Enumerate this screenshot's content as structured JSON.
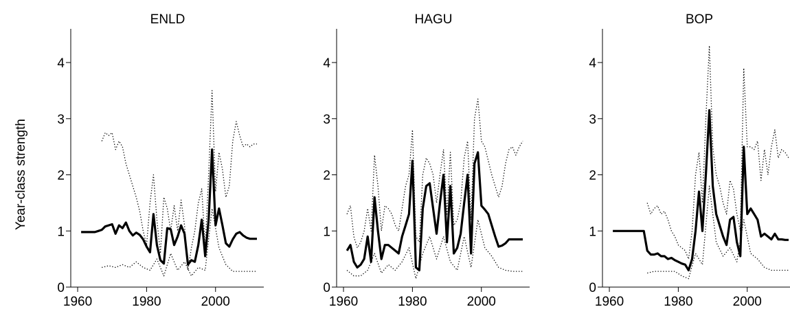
{
  "figure": {
    "ylabel": "Year-class strength"
  },
  "style": {
    "line_color": "#000000",
    "background": "#ffffff",
    "axis_color": "#000000"
  },
  "chart_data": [
    {
      "type": "line",
      "title": "ENLD",
      "ylabel": "Year-class strength",
      "xlim": [
        1958,
        2014
      ],
      "ylim": [
        0,
        4.6
      ],
      "xticks": [
        1960,
        1980,
        2000
      ],
      "yticks": [
        0,
        1,
        2,
        3,
        4
      ],
      "grid": false,
      "series": [
        {
          "line_style": "solid",
          "x": [
            1961,
            1962,
            1963,
            1964,
            1965,
            1966,
            1967,
            1968,
            1969,
            1970,
            1971,
            1972,
            1973,
            1974,
            1975,
            1976,
            1977,
            1978,
            1979,
            1980,
            1981,
            1982,
            1983,
            1984,
            1985,
            1986,
            1987,
            1988,
            1989,
            1990,
            1991,
            1992,
            1993,
            1994,
            1995,
            1996,
            1997,
            1998,
            1999,
            2000,
            2001,
            2002,
            2003,
            2004,
            2005,
            2006,
            2007,
            2008,
            2009,
            2010,
            2011,
            2012
          ],
          "y": [
            0.98,
            0.98,
            0.98,
            0.98,
            0.98,
            1.0,
            1.02,
            1.08,
            1.1,
            1.12,
            0.95,
            1.1,
            1.05,
            1.15,
            1.0,
            0.92,
            0.97,
            0.93,
            0.85,
            0.72,
            0.62,
            1.3,
            0.75,
            0.48,
            0.42,
            1.05,
            1.03,
            0.75,
            0.9,
            1.1,
            0.95,
            0.4,
            0.48,
            0.45,
            0.75,
            1.2,
            0.55,
            1.2,
            2.45,
            1.1,
            1.4,
            1.1,
            0.78,
            0.72,
            0.85,
            0.95,
            0.98,
            0.92,
            0.88,
            0.86,
            0.86,
            0.86
          ]
        },
        {
          "line_style": "dotted",
          "x": [
            1967,
            1968,
            1969,
            1970,
            1971,
            1972,
            1973,
            1974,
            1975,
            1976,
            1977,
            1978,
            1979,
            1980,
            1981,
            1982,
            1983,
            1984,
            1985,
            1986,
            1987,
            1988,
            1989,
            1990,
            1991,
            1992,
            1993,
            1994,
            1995,
            1996,
            1997,
            1998,
            1999,
            2000,
            2001,
            2002,
            2003,
            2004,
            2005,
            2006,
            2007,
            2008,
            2009,
            2010,
            2011,
            2012
          ],
          "y": [
            2.6,
            2.75,
            2.7,
            2.75,
            2.45,
            2.6,
            2.5,
            2.2,
            2.0,
            1.8,
            1.6,
            1.35,
            1.0,
            0.75,
            1.5,
            2.0,
            1.2,
            0.6,
            1.6,
            1.4,
            1.0,
            1.45,
            1.0,
            1.55,
            1.1,
            0.3,
            0.7,
            1.0,
            1.5,
            1.75,
            0.7,
            2.0,
            3.5,
            1.7,
            2.4,
            2.1,
            1.6,
            1.8,
            2.6,
            2.95,
            2.7,
            2.5,
            2.55,
            2.5,
            2.55,
            2.55
          ]
        },
        {
          "line_style": "dotted",
          "x": [
            1967,
            1969,
            1971,
            1973,
            1975,
            1977,
            1979,
            1981,
            1983,
            1985,
            1987,
            1989,
            1991,
            1993,
            1995,
            1997,
            1999,
            2001,
            2003,
            2005,
            2007,
            2009,
            2011,
            2012
          ],
          "y": [
            0.35,
            0.38,
            0.35,
            0.4,
            0.35,
            0.45,
            0.35,
            0.3,
            0.5,
            0.2,
            0.6,
            0.3,
            0.45,
            0.2,
            0.35,
            0.3,
            1.4,
            0.7,
            0.4,
            0.28,
            0.28,
            0.28,
            0.28,
            0.28
          ]
        }
      ]
    },
    {
      "type": "line",
      "title": "HAGU",
      "xlim": [
        1958,
        2014
      ],
      "ylim": [
        0,
        4.6
      ],
      "xticks": [
        1960,
        1980,
        2000
      ],
      "yticks": [
        0,
        1,
        2,
        3,
        4
      ],
      "grid": false,
      "series": [
        {
          "line_style": "solid",
          "x": [
            1961,
            1962,
            1963,
            1964,
            1965,
            1966,
            1967,
            1968,
            1969,
            1970,
            1971,
            1972,
            1973,
            1974,
            1975,
            1976,
            1977,
            1978,
            1979,
            1980,
            1981,
            1982,
            1983,
            1984,
            1985,
            1986,
            1987,
            1988,
            1989,
            1990,
            1991,
            1992,
            1993,
            1994,
            1995,
            1996,
            1997,
            1998,
            1999,
            2000,
            2001,
            2002,
            2003,
            2004,
            2005,
            2006,
            2007,
            2008,
            2009,
            2010,
            2011,
            2012
          ],
          "y": [
            0.65,
            0.75,
            0.45,
            0.35,
            0.4,
            0.5,
            0.9,
            0.45,
            1.6,
            1.0,
            0.5,
            0.75,
            0.75,
            0.7,
            0.65,
            0.6,
            0.9,
            1.1,
            1.3,
            2.25,
            0.35,
            0.3,
            1.4,
            1.8,
            1.85,
            1.4,
            0.95,
            1.5,
            2.0,
            0.8,
            1.8,
            0.6,
            0.7,
            0.95,
            1.5,
            2.0,
            0.6,
            2.2,
            2.4,
            1.45,
            1.38,
            1.3,
            1.1,
            0.9,
            0.72,
            0.74,
            0.78,
            0.85,
            0.85,
            0.85,
            0.85,
            0.85
          ]
        },
        {
          "line_style": "dotted",
          "x": [
            1961,
            1962,
            1963,
            1964,
            1965,
            1966,
            1967,
            1968,
            1969,
            1970,
            1971,
            1972,
            1973,
            1974,
            1975,
            1976,
            1977,
            1978,
            1979,
            1980,
            1981,
            1982,
            1983,
            1984,
            1985,
            1986,
            1987,
            1988,
            1989,
            1990,
            1991,
            1992,
            1993,
            1994,
            1995,
            1996,
            1997,
            1998,
            1999,
            2000,
            2001,
            2002,
            2003,
            2004,
            2005,
            2006,
            2007,
            2008,
            2009,
            2010,
            2011,
            2012
          ],
          "y": [
            1.3,
            1.45,
            0.9,
            0.7,
            0.8,
            1.0,
            1.4,
            1.0,
            2.35,
            1.8,
            1.0,
            1.45,
            1.4,
            1.3,
            1.1,
            1.0,
            1.4,
            1.8,
            2.0,
            2.8,
            0.9,
            0.8,
            2.0,
            2.3,
            2.2,
            2.0,
            1.5,
            2.0,
            2.45,
            1.3,
            2.4,
            1.1,
            1.2,
            1.5,
            2.3,
            2.6,
            1.2,
            3.0,
            3.35,
            2.6,
            2.5,
            2.25,
            2.0,
            1.8,
            1.6,
            1.8,
            2.2,
            2.45,
            2.5,
            2.35,
            2.5,
            2.6
          ]
        },
        {
          "line_style": "dotted",
          "x": [
            1961,
            1963,
            1965,
            1967,
            1969,
            1971,
            1973,
            1975,
            1977,
            1979,
            1981,
            1983,
            1985,
            1987,
            1989,
            1991,
            1993,
            1995,
            1997,
            1999,
            2001,
            2003,
            2005,
            2007,
            2009,
            2011,
            2012
          ],
          "y": [
            0.3,
            0.2,
            0.2,
            0.3,
            0.6,
            0.25,
            0.4,
            0.3,
            0.45,
            0.7,
            0.15,
            0.6,
            0.9,
            0.5,
            0.9,
            0.45,
            0.3,
            0.9,
            0.35,
            1.2,
            0.7,
            0.55,
            0.35,
            0.3,
            0.28,
            0.28,
            0.28
          ]
        }
      ]
    },
    {
      "type": "line",
      "title": "BOP",
      "xlim": [
        1958,
        2014
      ],
      "ylim": [
        0,
        4.6
      ],
      "xticks": [
        1960,
        1980,
        2000
      ],
      "yticks": [
        0,
        1,
        2,
        3,
        4
      ],
      "grid": false,
      "series": [
        {
          "line_style": "solid",
          "x": [
            1961,
            1962,
            1963,
            1964,
            1965,
            1966,
            1967,
            1968,
            1969,
            1970,
            1971,
            1972,
            1973,
            1974,
            1975,
            1976,
            1977,
            1978,
            1979,
            1980,
            1981,
            1982,
            1983,
            1984,
            1985,
            1986,
            1987,
            1988,
            1989,
            1990,
            1991,
            1992,
            1993,
            1994,
            1995,
            1996,
            1997,
            1998,
            1999,
            2000,
            2001,
            2002,
            2003,
            2004,
            2005,
            2006,
            2007,
            2008,
            2009,
            2010,
            2011,
            2012
          ],
          "y": [
            1.0,
            1.0,
            1.0,
            1.0,
            1.0,
            1.0,
            1.0,
            1.0,
            1.0,
            1.0,
            0.65,
            0.58,
            0.58,
            0.6,
            0.55,
            0.55,
            0.5,
            0.52,
            0.48,
            0.45,
            0.42,
            0.4,
            0.3,
            0.5,
            1.0,
            1.7,
            1.0,
            2.0,
            3.15,
            1.8,
            1.3,
            1.1,
            0.9,
            0.75,
            1.2,
            1.25,
            0.8,
            0.55,
            2.5,
            1.3,
            1.4,
            1.3,
            1.2,
            0.9,
            0.95,
            0.9,
            0.85,
            0.95,
            0.85,
            0.85,
            0.84,
            0.84
          ]
        },
        {
          "line_style": "dotted",
          "x": [
            1971,
            1972,
            1973,
            1974,
            1975,
            1976,
            1977,
            1978,
            1979,
            1980,
            1981,
            1982,
            1983,
            1984,
            1985,
            1986,
            1987,
            1988,
            1989,
            1990,
            1991,
            1992,
            1993,
            1994,
            1995,
            1996,
            1997,
            1998,
            1999,
            2000,
            2001,
            2002,
            2003,
            2004,
            2005,
            2006,
            2007,
            2008,
            2009,
            2010,
            2011,
            2012
          ],
          "y": [
            1.5,
            1.3,
            1.4,
            1.45,
            1.3,
            1.35,
            1.2,
            1.0,
            0.9,
            0.75,
            0.7,
            0.65,
            0.5,
            1.0,
            2.0,
            2.4,
            1.5,
            3.0,
            4.3,
            2.5,
            2.0,
            1.8,
            1.5,
            1.3,
            1.9,
            1.75,
            1.3,
            1.0,
            3.9,
            2.5,
            2.5,
            2.45,
            2.6,
            1.9,
            2.45,
            2.0,
            2.5,
            2.8,
            2.3,
            2.45,
            2.4,
            2.3
          ]
        },
        {
          "line_style": "dotted",
          "x": [
            1971,
            1973,
            1975,
            1977,
            1979,
            1981,
            1983,
            1985,
            1987,
            1989,
            1991,
            1993,
            1995,
            1997,
            1999,
            2001,
            2003,
            2005,
            2007,
            2009,
            2011,
            2012
          ],
          "y": [
            0.25,
            0.28,
            0.28,
            0.28,
            0.28,
            0.2,
            0.15,
            0.6,
            0.4,
            1.8,
            0.8,
            0.55,
            0.7,
            0.45,
            1.2,
            0.6,
            0.5,
            0.35,
            0.3,
            0.3,
            0.3,
            0.3
          ]
        }
      ]
    }
  ]
}
